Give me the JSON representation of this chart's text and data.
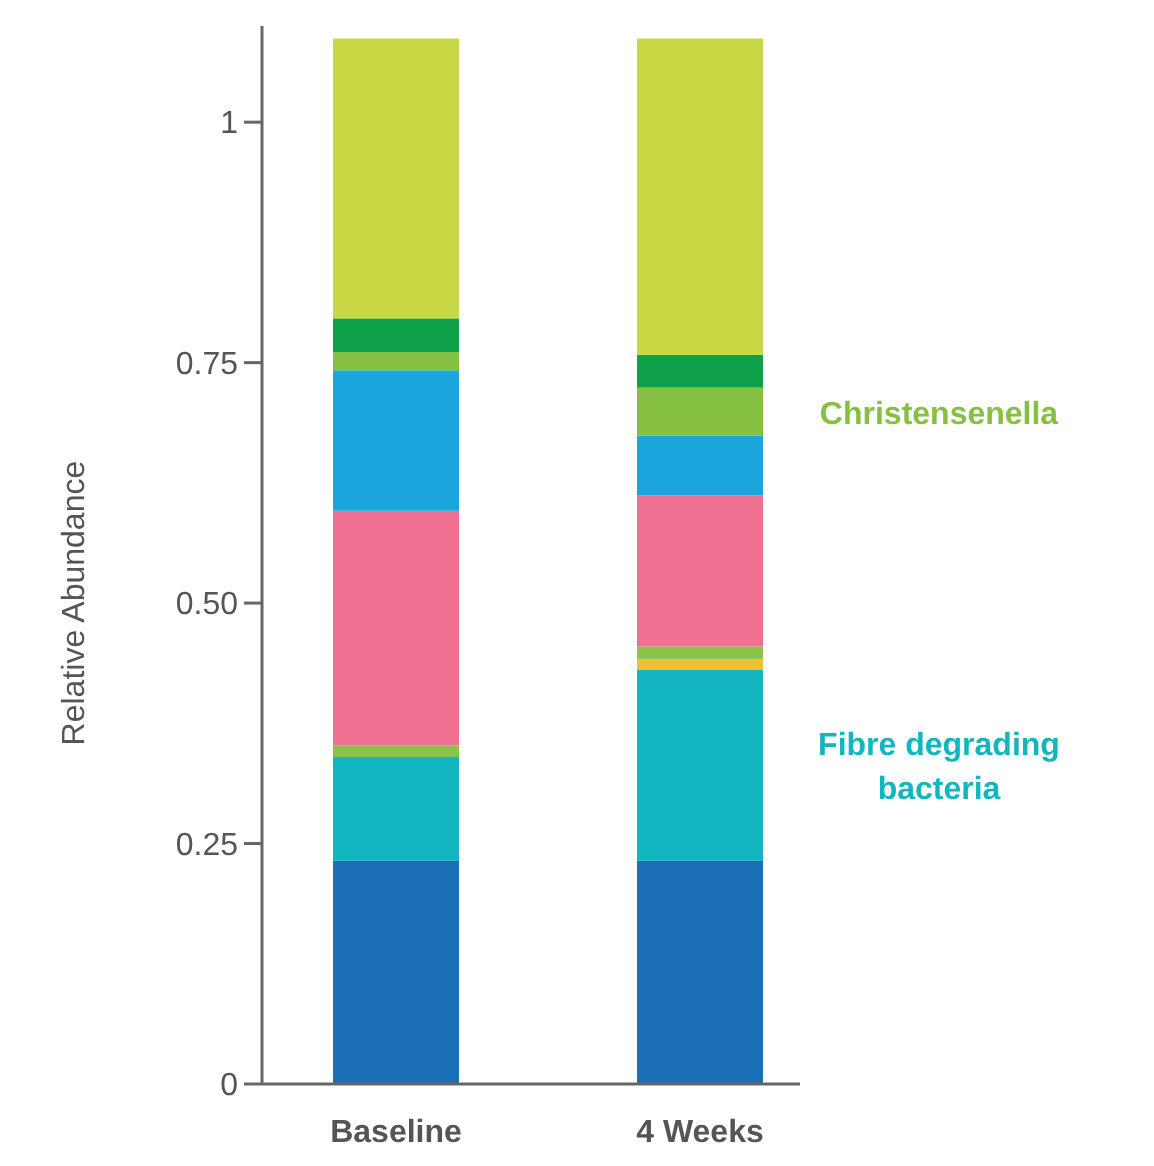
{
  "chart_data": {
    "type": "bar",
    "stacked": true,
    "ylabel": "Relative Abundance",
    "categories": [
      "Baseline",
      "4 Weeks"
    ],
    "ylim": [
      0,
      1.1
    ],
    "yticks": [
      0,
      0.25,
      {
        "value": 0.5,
        "label": "0.50"
      },
      0.75,
      1
    ],
    "grid": false,
    "series": [
      {
        "color": "#1b6fb5",
        "values": [
          0.232,
          0.232
        ]
      },
      {
        "name": "Fibre degrading bacteria",
        "color": "#12b5c0",
        "values": [
          0.108,
          0.199
        ]
      },
      {
        "color": "#f0c030",
        "values": [
          0,
          0.011
        ]
      },
      {
        "color": "#8bc34a",
        "values": [
          0.012,
          0.013
        ]
      },
      {
        "color": "#ef7090",
        "values": [
          0.244,
          0.157
        ]
      },
      {
        "color": "#1aa6dd",
        "values": [
          0.146,
          0.062
        ]
      },
      {
        "name": "Christensenella",
        "color": "#86c042",
        "values": [
          0.019,
          0.05
        ]
      },
      {
        "color": "#0fa04a",
        "values": [
          0.035,
          0.034
        ]
      },
      {
        "color": "#c8d844",
        "values": [
          0.291,
          0.329
        ]
      }
    ]
  }
}
